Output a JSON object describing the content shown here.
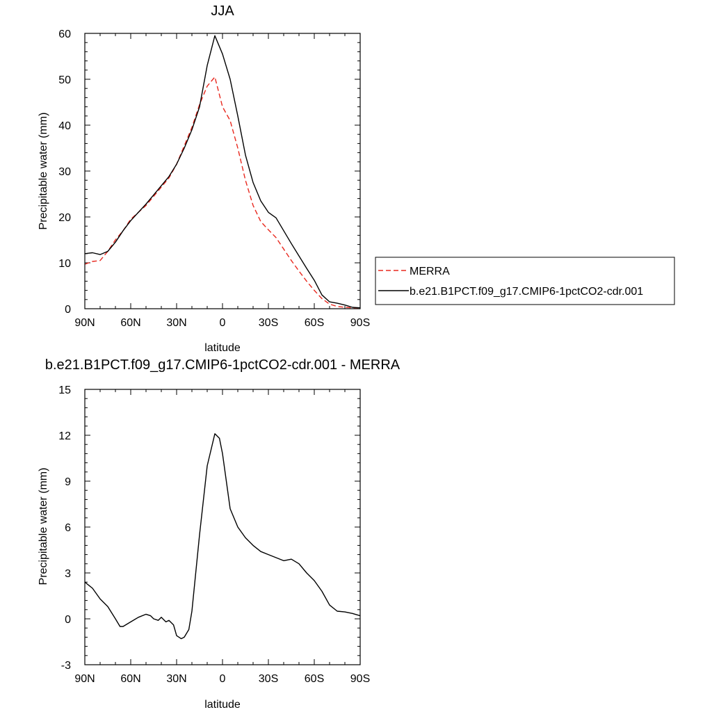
{
  "chart_data": [
    {
      "type": "line",
      "title": "JJA",
      "xlabel": "latitude",
      "ylabel": "Precipitable water (mm)",
      "xlim": [
        90,
        -90
      ],
      "ylim": [
        0,
        60
      ],
      "x_tick_values": [
        90,
        60,
        30,
        0,
        -30,
        -60,
        -90
      ],
      "x_tick_labels": [
        "90N",
        "60N",
        "30N",
        "0",
        "30S",
        "60S",
        "90S"
      ],
      "y_tick_values": [
        0,
        10,
        20,
        30,
        40,
        50,
        60
      ],
      "y_tick_labels": [
        "0",
        "10",
        "20",
        "30",
        "40",
        "50",
        "60"
      ],
      "grid": false,
      "legend_position": "right",
      "x": [
        90,
        85,
        80,
        75,
        70,
        65,
        60,
        55,
        50,
        45,
        40,
        35,
        30,
        25,
        20,
        15,
        10,
        5,
        0,
        -5,
        -10,
        -15,
        -20,
        -25,
        -30,
        -35,
        -40,
        -45,
        -50,
        -55,
        -60,
        -65,
        -70,
        -75,
        -80,
        -85,
        -90
      ],
      "series": [
        {
          "name": "MERRA",
          "color": "#e8281e",
          "dash": "dashed",
          "values": [
            9.7,
            10.3,
            10.5,
            12.5,
            15.0,
            17.0,
            19.5,
            21.0,
            22.5,
            24.5,
            26.5,
            28.5,
            31.5,
            35.5,
            39.5,
            44.5,
            48.5,
            50.5,
            44.0,
            41.0,
            35.0,
            28.0,
            22.5,
            19.0,
            17.2,
            15.5,
            13.0,
            10.5,
            8.2,
            6.0,
            4.0,
            2.2,
            1.0,
            0.5,
            0.3,
            0.2,
            0.2
          ]
        },
        {
          "name": "b.e21.B1PCT.f09_g17.CMIP6-1pctCO2-cdr.001",
          "color": "#000000",
          "dash": "solid",
          "values": [
            12.0,
            12.2,
            11.8,
            12.5,
            14.5,
            17.0,
            19.2,
            21.0,
            22.8,
            24.8,
            26.8,
            28.8,
            31.5,
            35.0,
            39.0,
            44.0,
            53.0,
            59.5,
            55.5,
            50.0,
            42.0,
            33.5,
            27.5,
            23.5,
            21.0,
            19.8,
            17.0,
            14.2,
            11.5,
            8.8,
            6.2,
            3.0,
            1.5,
            1.2,
            0.8,
            0.3,
            0.2
          ]
        }
      ]
    },
    {
      "type": "line",
      "title": "b.e21.B1PCT.f09_g17.CMIP6-1pctCO2-cdr.001 - MERRA",
      "xlabel": "latitude",
      "ylabel": "Precipitable water (mm)",
      "xlim": [
        90,
        -90
      ],
      "ylim": [
        -3,
        15
      ],
      "x_tick_values": [
        90,
        60,
        30,
        0,
        -30,
        -60,
        -90
      ],
      "x_tick_labels": [
        "90N",
        "60N",
        "30N",
        "0",
        "30S",
        "60S",
        "90S"
      ],
      "y_tick_values": [
        -3,
        0,
        3,
        6,
        9,
        12,
        15
      ],
      "y_tick_labels": [
        "-3",
        "0",
        "3",
        "6",
        "9",
        "12",
        "15"
      ],
      "grid": false,
      "x": [
        90,
        85,
        80,
        75,
        70,
        67,
        65,
        60,
        55,
        50,
        47,
        45,
        42,
        40,
        37,
        35,
        32,
        30,
        27,
        25,
        22,
        20,
        15,
        10,
        5,
        2,
        0,
        -5,
        -10,
        -15,
        -20,
        -25,
        -30,
        -35,
        -40,
        -45,
        -50,
        -55,
        -60,
        -65,
        -70,
        -75,
        -80,
        -85,
        -90
      ],
      "series": [
        {
          "color": "#000000",
          "dash": "solid",
          "values": [
            2.4,
            2.0,
            1.3,
            0.8,
            0.0,
            -0.5,
            -0.5,
            -0.2,
            0.1,
            0.3,
            0.2,
            0.0,
            -0.1,
            0.1,
            -0.2,
            -0.1,
            -0.4,
            -1.1,
            -1.3,
            -1.2,
            -0.7,
            0.5,
            5.5,
            10.0,
            12.1,
            11.8,
            10.8,
            7.2,
            6.0,
            5.3,
            4.8,
            4.4,
            4.2,
            4.0,
            3.8,
            3.9,
            3.6,
            3.0,
            2.5,
            1.8,
            0.9,
            0.5,
            0.45,
            0.35,
            0.2
          ]
        }
      ]
    }
  ]
}
